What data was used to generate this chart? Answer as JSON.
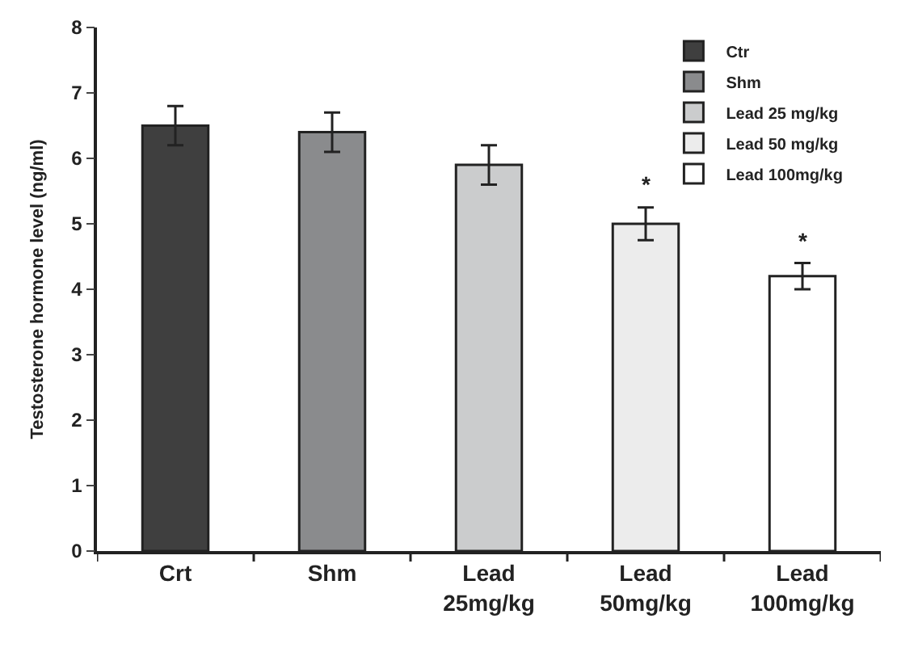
{
  "chart_data": {
    "type": "bar",
    "ylabel": "Testosterone hormone level (ng/ml)",
    "categories": [
      "Crt",
      "Shm",
      "Lead\n25mg/kg",
      "Lead\n50mg/kg",
      "Lead\n100mg/kg"
    ],
    "series": [
      {
        "name": "Ctr",
        "color": "#3f3f3f",
        "values": [
          6.5,
          null,
          null,
          null,
          null
        ],
        "errors": [
          0.3,
          null,
          null,
          null,
          null
        ]
      },
      {
        "name": "Shm",
        "color": "#8a8b8d",
        "values": [
          null,
          6.4,
          null,
          null,
          null
        ],
        "errors": [
          null,
          0.3,
          null,
          null,
          null
        ]
      },
      {
        "name": "Lead 25 mg/kg",
        "color": "#cbcccd",
        "values": [
          null,
          null,
          5.9,
          null,
          null
        ],
        "errors": [
          null,
          null,
          0.3,
          null,
          null
        ]
      },
      {
        "name": "Lead 50 mg/kg",
        "color": "#ececec",
        "values": [
          null,
          null,
          null,
          5.0,
          null
        ],
        "errors": [
          null,
          null,
          null,
          0.25,
          null
        ],
        "value_labels": [
          null,
          null,
          null,
          "*",
          null
        ]
      },
      {
        "name": "Lead 100mg/kg",
        "color": "#ffffff",
        "values": [
          null,
          null,
          null,
          null,
          4.2
        ],
        "errors": [
          null,
          null,
          null,
          null,
          0.2
        ],
        "value_labels": [
          null,
          null,
          null,
          null,
          "*"
        ]
      }
    ],
    "ylim": [
      0,
      8
    ],
    "yticks": [
      0,
      1,
      2,
      3,
      4,
      5,
      6,
      7,
      8
    ],
    "legend": "top right"
  }
}
